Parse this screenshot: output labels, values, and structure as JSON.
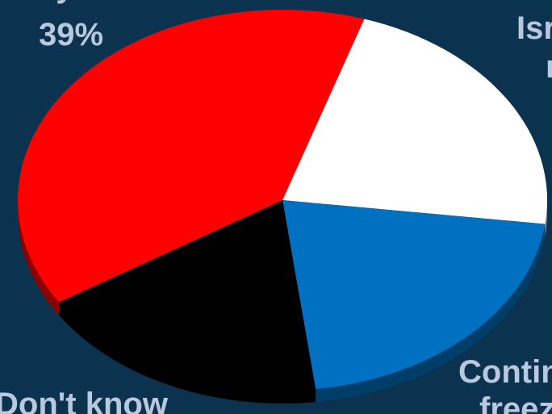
{
  "chart_data": {
    "type": "pie",
    "title": "",
    "slices": [
      {
        "label": "…verywhere",
        "value_label": "39%",
        "value": 39,
        "color": "#ff0000"
      },
      {
        "label": "Isr…",
        "value_label": "",
        "value": 22,
        "color": "#ffffff"
      },
      {
        "label": "Contin… freez…",
        "value_label": "",
        "value": 21,
        "color": "#0070c0"
      },
      {
        "label": "Don't know",
        "value_label": "",
        "value": 18,
        "color": "#000000"
      }
    ],
    "style": "3d-tilted",
    "labels_text": {
      "top_left_line1": "verywhere",
      "top_left_line2": "39%",
      "top_right_line1": "Isr",
      "top_right_line2": "r",
      "bottom_right_line1": "Contin",
      "bottom_right_line2": "freez",
      "bottom_left_line1": "Don't know"
    }
  }
}
